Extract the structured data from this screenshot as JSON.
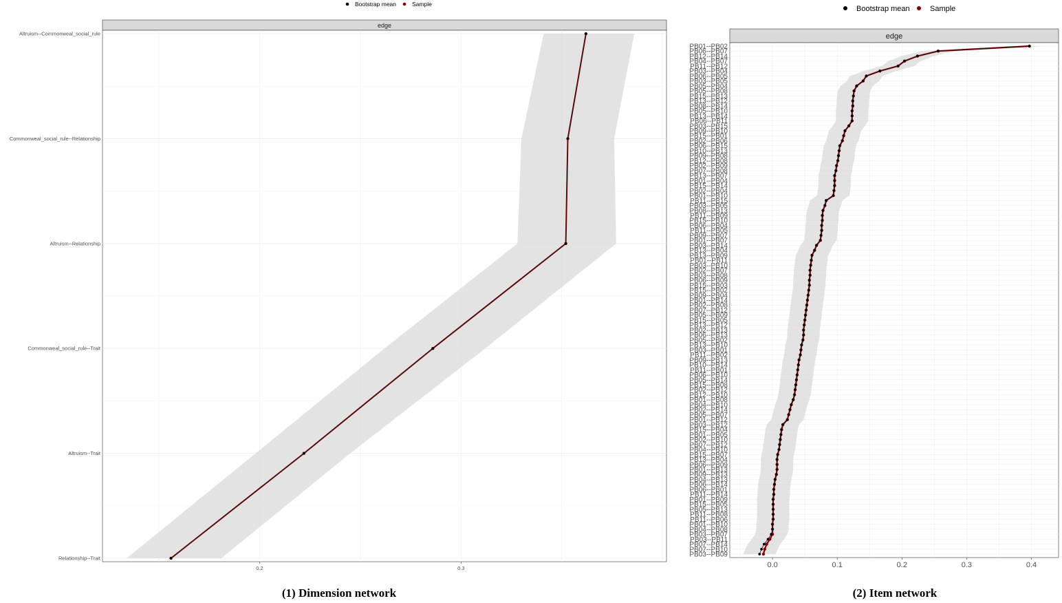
{
  "colors": {
    "bootstrap_mean": "#000000",
    "sample": "#8b0000",
    "ci_band": "#d9d9d9",
    "strip": "#d9d9d9",
    "grid": "#ebebeb"
  },
  "chart_data": [
    {
      "type": "line",
      "caption": "(1) Dimension network",
      "facet_label": "edge",
      "legend": {
        "entries": [
          "Bootstrap mean",
          "Sample"
        ],
        "placement": "top"
      },
      "orientation": "horizontal",
      "categories": [
        "Altruism--Commonweal_social_rule",
        "Commonweal_social_rule--Relationship",
        "Altruism--Relationship",
        "Commonweal_social_rule--Trait",
        "Altruism--Trait",
        "Relationship--Trait"
      ],
      "series": [
        {
          "name": "Sample",
          "values": [
            0.362,
            0.353,
            0.352,
            0.286,
            0.222,
            0.156
          ]
        },
        {
          "name": "Bootstrap mean",
          "values": [
            0.362,
            0.353,
            0.352,
            0.286,
            0.222,
            0.156
          ]
        }
      ],
      "ci_lower": [
        0.341,
        0.33,
        0.328,
        0.262,
        0.198,
        0.134
      ],
      "ci_upper": [
        0.386,
        0.376,
        0.377,
        0.312,
        0.245,
        0.181
      ],
      "x_ticks": [
        0.2,
        0.3
      ],
      "xlim": [
        0.122,
        0.402
      ],
      "grid": true
    },
    {
      "type": "line",
      "caption": "(2) Item network",
      "facet_label": "edge",
      "legend": {
        "entries": [
          "Bootstrap mean",
          "Sample"
        ],
        "placement": "top"
      },
      "orientation": "horizontal",
      "categories": [
        "PB01--PB02",
        "PB06--PB07",
        "PB12--PB14",
        "PB04--PB07",
        "PB11--PB12",
        "PB03--PB04",
        "PB06--PB05",
        "PB03--PB05",
        "PB05--PB04",
        "PB05--PB08",
        "PB15--PB13",
        "PB13--PB12",
        "PB08--PB14",
        "PB05--PB10",
        "PB13--PB14",
        "PB06--PB11",
        "PB03--PB15",
        "PB09--PB10",
        "PB15--PB01",
        "PB02--PB06",
        "PB06--PB15",
        "PB10--PB13",
        "PB09--PB08",
        "PB12--PB08",
        "PB02--PB09",
        "PB07--PB08",
        "PB13--PB07",
        "PB01--PB04",
        "PB15--PB14",
        "PB02--PB04",
        "PB01--PB10",
        "PB11--PB15",
        "PB03--PB05",
        "PB08--PB13",
        "PB11--PB09",
        "PB15--PB10",
        "PB06--PB04",
        "PB11--PB05",
        "PB09--PB07",
        "PB01--PB07",
        "PB03--PB14",
        "PB13--PB04",
        "PB13--PB09",
        "PB01--PB11",
        "PB03--PB10",
        "PB02--PB07",
        "PB03--PB08",
        "PB06--PB09",
        "PB15--PB03",
        "PB15--PB02",
        "PB09--PB04",
        "PB01--PB14",
        "PB02--PB08",
        "PB07--PB12",
        "PB05--PB09",
        "PB15--PB05",
        "PB13--PB12",
        "PB02--PB13",
        "PB06--PB13",
        "PB05--PB02",
        "PB13--PB10",
        "PB03--PB01",
        "PB11--PB02",
        "PB09--PB13",
        "PB10--PB14",
        "PB11--PB01",
        "PB06--PB10",
        "PB05--PB14",
        "PB15--PB08",
        "PB02--PB12",
        "PB12--PB10",
        "PB01--PB08",
        "PB04--PB10",
        "PB02--PB14",
        "PB05--PB07",
        "PB01--PB12",
        "PB03--PB12",
        "PB15--PB04",
        "PB01--PB05",
        "PB02--PB10",
        "PB07--PB12",
        "PB04--PB10",
        "PB15--PB07",
        "PB13--PB04",
        "PB06--PB09",
        "PB01--PB13",
        "PB09--PB13",
        "PB04--PB13",
        "PB06--PB14",
        "PB06--PB01",
        "PB11--PB14",
        "PB01--PB09",
        "PB15--PB05",
        "PB05--PB13",
        "PB11--PB08",
        "PB11--PB06",
        "PB01--PB10",
        "PB04--PB08",
        "PB03--PB07",
        "PB03--PB11",
        "PB07--PB14",
        "PB07--PB10",
        "PB03--PB09"
      ],
      "series": [
        {
          "name": "Sample",
          "values": [
            0.397,
            0.256,
            0.224,
            0.204,
            0.194,
            0.166,
            0.145,
            0.14,
            0.13,
            0.126,
            0.125,
            0.124,
            0.124,
            0.123,
            0.123,
            0.123,
            0.118,
            0.112,
            0.11,
            0.108,
            0.104,
            0.103,
            0.102,
            0.101,
            0.099,
            0.098,
            0.096,
            0.096,
            0.096,
            0.095,
            0.094,
            0.083,
            0.081,
            0.078,
            0.077,
            0.077,
            0.076,
            0.076,
            0.075,
            0.074,
            0.068,
            0.065,
            0.061,
            0.06,
            0.059,
            0.058,
            0.058,
            0.057,
            0.057,
            0.056,
            0.055,
            0.054,
            0.053,
            0.052,
            0.051,
            0.05,
            0.049,
            0.048,
            0.048,
            0.047,
            0.045,
            0.044,
            0.043,
            0.041,
            0.04,
            0.039,
            0.038,
            0.037,
            0.036,
            0.035,
            0.034,
            0.032,
            0.029,
            0.027,
            0.025,
            0.023,
            0.016,
            0.014,
            0.013,
            0.012,
            0.011,
            0.01,
            0.008,
            0.007,
            0.007,
            0.007,
            0.006,
            0.004,
            0.003,
            0.002,
            0.002,
            0.001,
            0.001,
            0.001,
            0.001,
            0.001,
            0.0,
            0.0,
            0.0,
            -0.004,
            -0.009,
            -0.012,
            -0.014
          ]
        },
        {
          "name": "Bootstrap mean",
          "values": [
            0.397,
            0.256,
            0.224,
            0.204,
            0.194,
            0.166,
            0.145,
            0.14,
            0.13,
            0.126,
            0.125,
            0.124,
            0.124,
            0.123,
            0.123,
            0.123,
            0.118,
            0.112,
            0.11,
            0.108,
            0.104,
            0.103,
            0.102,
            0.101,
            0.099,
            0.098,
            0.096,
            0.096,
            0.096,
            0.095,
            0.094,
            0.083,
            0.081,
            0.078,
            0.077,
            0.077,
            0.076,
            0.076,
            0.075,
            0.074,
            0.068,
            0.065,
            0.061,
            0.06,
            0.059,
            0.058,
            0.058,
            0.057,
            0.057,
            0.056,
            0.055,
            0.054,
            0.053,
            0.052,
            0.051,
            0.05,
            0.049,
            0.048,
            0.048,
            0.047,
            0.045,
            0.044,
            0.043,
            0.041,
            0.04,
            0.039,
            0.038,
            0.037,
            0.036,
            0.035,
            0.034,
            0.032,
            0.029,
            0.027,
            0.025,
            0.023,
            0.016,
            0.014,
            0.013,
            0.012,
            0.011,
            0.01,
            0.008,
            0.007,
            0.007,
            0.007,
            0.006,
            0.004,
            0.003,
            0.002,
            0.002,
            0.001,
            0.001,
            0.001,
            0.001,
            0.001,
            0.0,
            0.0,
            -0.002,
            -0.007,
            -0.013,
            -0.017,
            -0.02
          ]
        }
      ],
      "ci_half_width": 0.025,
      "x_ticks": [
        0.0,
        0.1,
        0.2,
        0.3,
        0.4
      ],
      "xlim": [
        -0.066,
        0.442
      ],
      "grid": true
    }
  ]
}
